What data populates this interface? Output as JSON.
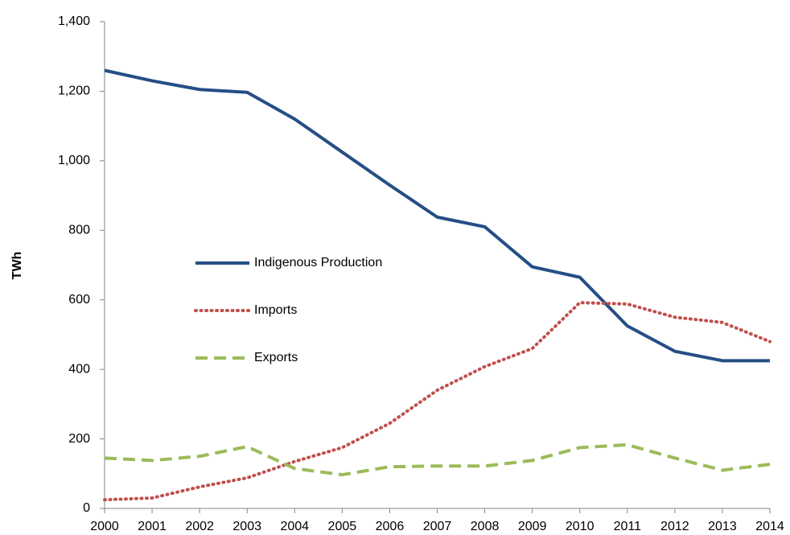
{
  "chart_data": {
    "type": "line",
    "y_label": "TWh",
    "x": [
      2000,
      2001,
      2002,
      2003,
      2004,
      2005,
      2006,
      2007,
      2008,
      2009,
      2010,
      2011,
      2012,
      2013,
      2014
    ],
    "xlim": [
      2000,
      2014
    ],
    "xticks": [
      2000,
      2001,
      2002,
      2003,
      2004,
      2005,
      2006,
      2007,
      2008,
      2009,
      2010,
      2011,
      2012,
      2013,
      2014
    ],
    "ylim": [
      0,
      1400
    ],
    "yticks": [
      0,
      200,
      400,
      600,
      800,
      {
        "value": 1000,
        "label": "1,000"
      },
      {
        "value": 1200,
        "label": "1,200"
      },
      {
        "value": 1400,
        "label": "1,400"
      }
    ],
    "grid": false,
    "legend": "left",
    "series": [
      {
        "name": "Indigenous Production",
        "color": "#254e85",
        "style": "solid",
        "values": [
          1260,
          1230,
          1205,
          1197,
          1120,
          1025,
          930,
          838,
          810,
          695,
          665,
          525,
          452,
          425,
          425
        ]
      },
      {
        "name": "Imports",
        "color": "#c0504d",
        "style": "dotted",
        "values": [
          25,
          30,
          62,
          88,
          135,
          175,
          245,
          340,
          408,
          460,
          592,
          588,
          550,
          535,
          480
        ]
      },
      {
        "name": "Exports",
        "color": "#9bbb59",
        "style": "dashed",
        "values": [
          145,
          138,
          150,
          178,
          115,
          97,
          120,
          122,
          122,
          138,
          175,
          183,
          145,
          110,
          127
        ]
      }
    ]
  }
}
